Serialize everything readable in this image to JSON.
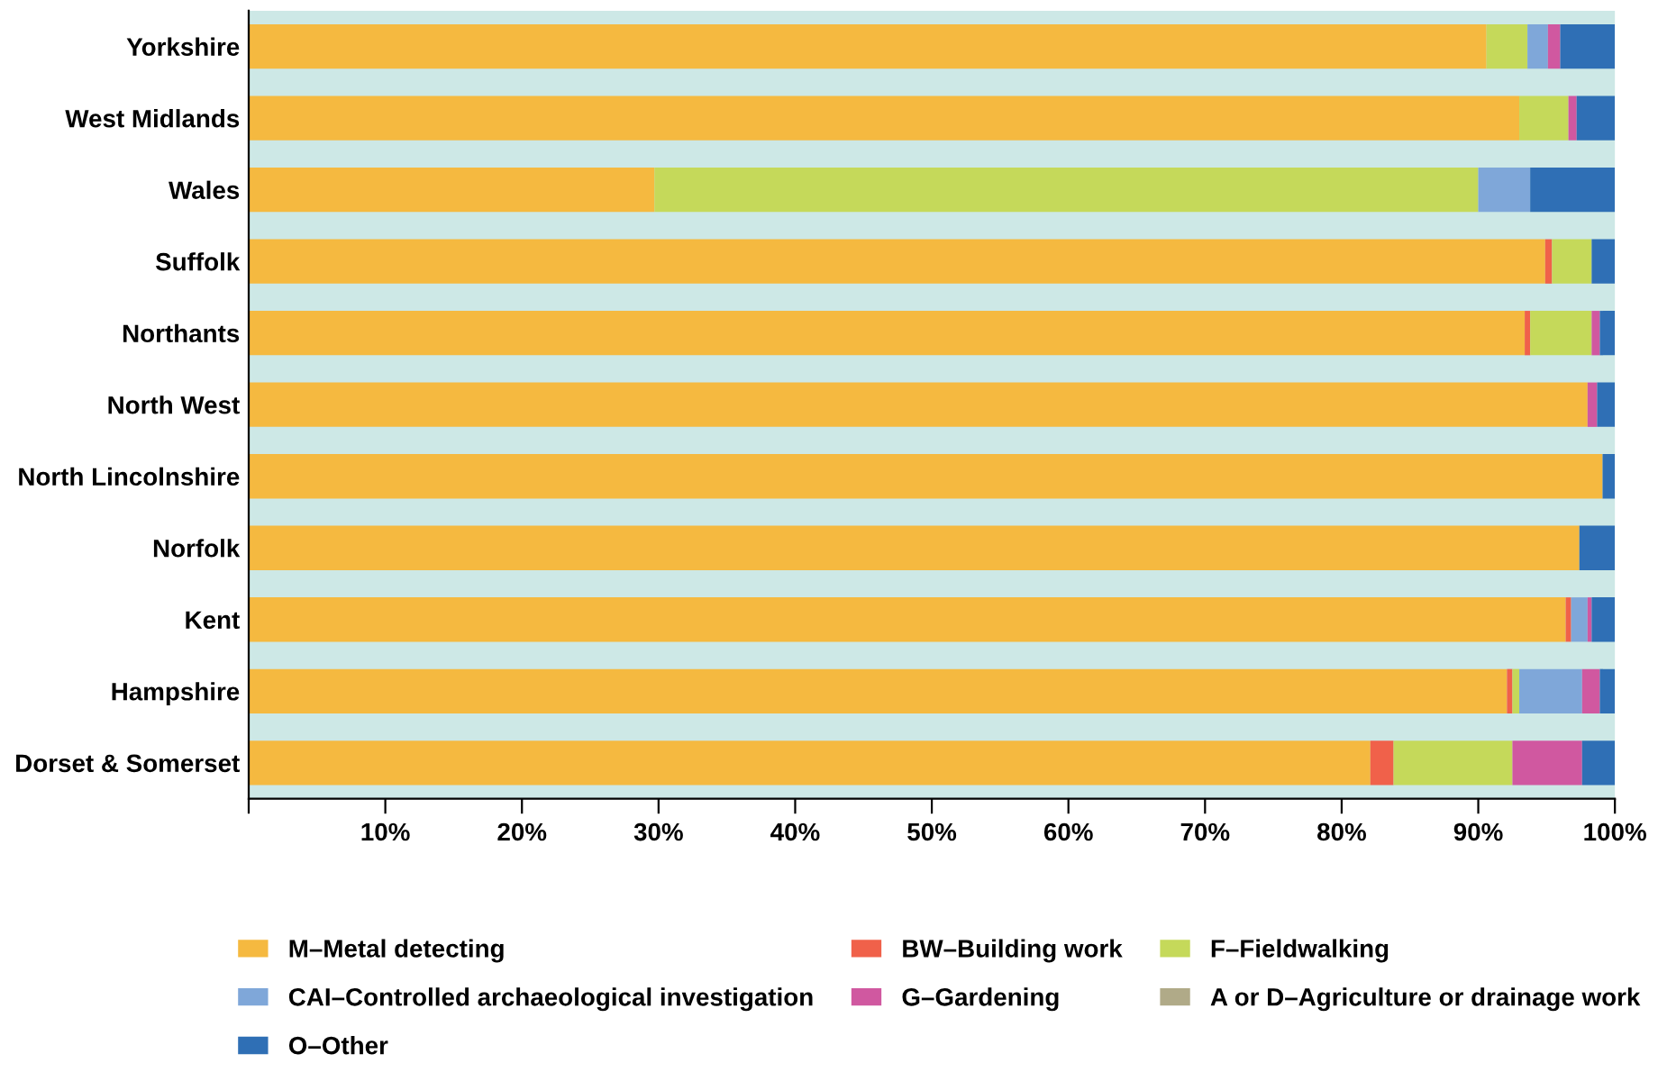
{
  "chart_data": {
    "type": "bar",
    "orientation": "horizontal",
    "stacked": true,
    "categories": [
      "Yorkshire",
      "West Midlands",
      "Wales",
      "Suffolk",
      "Northants",
      "North West",
      "North Lincolnshire",
      "Norfolk",
      "Kent",
      "Hampshire",
      "Dorset & Somerset"
    ],
    "series": [
      {
        "name": "M–Metal detecting",
        "color": "#f5b940",
        "values": [
          90.6,
          93.0,
          29.7,
          94.9,
          93.4,
          98.0,
          99.1,
          97.4,
          96.4,
          92.1,
          82.1
        ]
      },
      {
        "name": "BW–Building work",
        "color": "#f0614a",
        "values": [
          0,
          0,
          0,
          0.5,
          0.4,
          0,
          0,
          0,
          0.4,
          0.4,
          1.7
        ]
      },
      {
        "name": "F–Fieldwalking",
        "color": "#c5d95a",
        "values": [
          3.0,
          3.6,
          60.3,
          2.9,
          4.5,
          0,
          0,
          0,
          0,
          0.5,
          8.7
        ]
      },
      {
        "name": "CAI–Controlled archaeological investigation",
        "color": "#7fa7d9",
        "values": [
          1.5,
          0,
          3.8,
          0,
          0,
          0,
          0,
          0,
          1.2,
          4.6,
          0
        ]
      },
      {
        "name": "G–Gardening",
        "color": "#d058a0",
        "values": [
          0.9,
          0.6,
          0,
          0,
          0.6,
          0.7,
          0,
          0,
          0.3,
          1.3,
          5.1
        ]
      },
      {
        "name": "A or D–Agriculture or drainage work",
        "color": "#b0aa88",
        "values": [
          0,
          0,
          0,
          0,
          0,
          0,
          0,
          0,
          0,
          0,
          0
        ]
      },
      {
        "name": "O–Other",
        "color": "#2f6fb5",
        "values": [
          4.0,
          2.8,
          6.2,
          1.7,
          1.1,
          1.3,
          0.9,
          2.6,
          1.7,
          1.1,
          2.4
        ]
      }
    ],
    "xlim": [
      0,
      100
    ],
    "xticks": [
      {
        "value": 0,
        "label": null
      },
      {
        "value": 10,
        "label": "10%"
      },
      {
        "value": 20,
        "label": "20%"
      },
      {
        "value": 30,
        "label": "30%"
      },
      {
        "value": 40,
        "label": "40%"
      },
      {
        "value": 50,
        "label": "50%"
      },
      {
        "value": 60,
        "label": "60%"
      },
      {
        "value": 70,
        "label": "70%"
      },
      {
        "value": 80,
        "label": "80%"
      },
      {
        "value": 90,
        "label": "90%"
      },
      {
        "value": 100,
        "label": "100%"
      }
    ],
    "grid": false,
    "legend": "bottom"
  }
}
